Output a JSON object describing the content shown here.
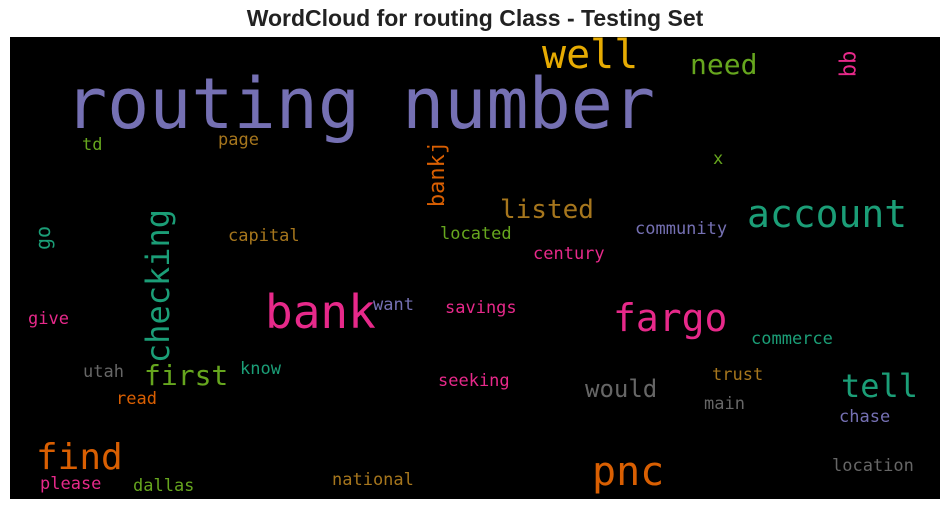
{
  "title": "WordCloud for routing Class - Testing Set",
  "words": [
    {
      "text": "routing number",
      "color": "#7570b3"
    },
    {
      "text": "well",
      "color": "#e6ab02"
    },
    {
      "text": "need",
      "color": "#66a61e"
    },
    {
      "text": "bb",
      "color": "#e7298a"
    },
    {
      "text": "td",
      "color": "#66a61e"
    },
    {
      "text": "page",
      "color": "#a6761d"
    },
    {
      "text": "bankj",
      "color": "#d95f02"
    },
    {
      "text": "x",
      "color": "#66a61e"
    },
    {
      "text": "account",
      "color": "#1b9e77"
    },
    {
      "text": "listed",
      "color": "#a6761d"
    },
    {
      "text": "checking",
      "color": "#1b9e77"
    },
    {
      "text": "go",
      "color": "#1b9e77"
    },
    {
      "text": "capital",
      "color": "#a6761d"
    },
    {
      "text": "located",
      "color": "#66a61e"
    },
    {
      "text": "community",
      "color": "#7570b3"
    },
    {
      "text": "century",
      "color": "#e7298a"
    },
    {
      "text": "bank",
      "color": "#e7298a"
    },
    {
      "text": "want",
      "color": "#7570b3"
    },
    {
      "text": "savings",
      "color": "#e7298a"
    },
    {
      "text": "fargo",
      "color": "#e7298a"
    },
    {
      "text": "give",
      "color": "#e7298a"
    },
    {
      "text": "commerce",
      "color": "#1b9e77"
    },
    {
      "text": "first",
      "color": "#66a61e"
    },
    {
      "text": "utah",
      "color": "#666666"
    },
    {
      "text": "know",
      "color": "#1b9e77"
    },
    {
      "text": "seeking",
      "color": "#e7298a"
    },
    {
      "text": "would",
      "color": "#666666"
    },
    {
      "text": "trust",
      "color": "#a6761d"
    },
    {
      "text": "tell",
      "color": "#1b9e77"
    },
    {
      "text": "read",
      "color": "#d95f02"
    },
    {
      "text": "main",
      "color": "#666666"
    },
    {
      "text": "chase",
      "color": "#7570b3"
    },
    {
      "text": "find",
      "color": "#d95f02"
    },
    {
      "text": "pnc",
      "color": "#d95f02"
    },
    {
      "text": "location",
      "color": "#666666"
    },
    {
      "text": "please",
      "color": "#e7298a"
    },
    {
      "text": "dallas",
      "color": "#66a61e"
    },
    {
      "text": "national",
      "color": "#a6761d"
    }
  ]
}
